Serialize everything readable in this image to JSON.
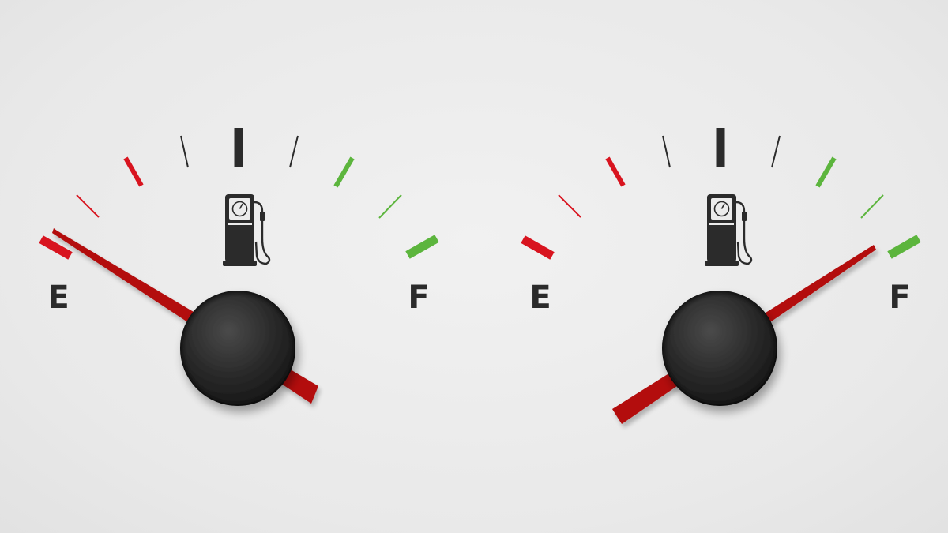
{
  "colors": {
    "background": "#ebebeb",
    "tick_red": "#d8141f",
    "tick_green": "#5cb53d",
    "tick_dark": "#2b2b2b",
    "needle": "#b30c0c",
    "knob": "#262626"
  },
  "gauges": [
    {
      "id": "left",
      "empty_label": "E",
      "full_label": "F",
      "icon": "fuel-pump-icon",
      "fuel_level_fraction": 0.02
    },
    {
      "id": "right",
      "empty_label": "E",
      "full_label": "F",
      "icon": "fuel-pump-icon",
      "fuel_level_fraction": 0.97
    }
  ]
}
